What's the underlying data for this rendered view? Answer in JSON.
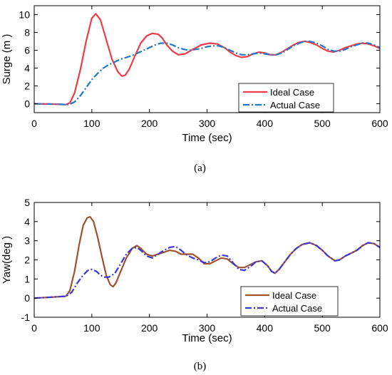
{
  "chart_data": [
    {
      "type": "line",
      "caption": "(a)",
      "xlabel": "Time (sec)",
      "ylabel": "Surge (m",
      "ylabel_suffix": ")",
      "xlim": [
        0,
        600
      ],
      "ylim": [
        -1,
        11
      ],
      "x_ticks": [
        0,
        100,
        200,
        300,
        400,
        500,
        600
      ],
      "y_ticks": [
        0,
        2,
        4,
        6,
        8,
        10
      ],
      "legend_position": "bottom-right",
      "series": [
        {
          "name": "Ideal Case",
          "color": "#f03c46",
          "style": "solid",
          "x": [
            0,
            40,
            55,
            62,
            70,
            80,
            90,
            100,
            107,
            115,
            125,
            135,
            145,
            152,
            158,
            165,
            175,
            185,
            195,
            205,
            215,
            222,
            230,
            240,
            250,
            262,
            275,
            290,
            305,
            318,
            330,
            340,
            350,
            360,
            370,
            380,
            390,
            400,
            410,
            420,
            430,
            440,
            450,
            460,
            470,
            478,
            490,
            500,
            510,
            520,
            530,
            540,
            550,
            560,
            570,
            580,
            590,
            600
          ],
          "y": [
            0,
            -0.05,
            -0.1,
            0.1,
            1.2,
            3.8,
            7.0,
            9.6,
            10.1,
            9.4,
            7.2,
            5.0,
            3.6,
            3.1,
            3.2,
            3.9,
            5.4,
            6.8,
            7.6,
            7.9,
            7.8,
            7.4,
            6.6,
            5.9,
            5.5,
            5.6,
            6.1,
            6.6,
            6.8,
            6.7,
            6.3,
            5.8,
            5.4,
            5.2,
            5.3,
            5.6,
            5.8,
            5.7,
            5.5,
            5.5,
            5.8,
            6.2,
            6.6,
            6.9,
            7.0,
            6.9,
            6.6,
            6.2,
            5.9,
            5.8,
            6.0,
            6.3,
            6.5,
            6.7,
            6.8,
            6.7,
            6.5,
            6.2
          ]
        },
        {
          "name": "Actual Case",
          "color": "#1f78c8",
          "style": "dashdot",
          "x": [
            0,
            40,
            60,
            70,
            80,
            90,
            100,
            110,
            120,
            130,
            140,
            150,
            160,
            170,
            180,
            190,
            200,
            210,
            220,
            230,
            240,
            250,
            260,
            270,
            280,
            290,
            300,
            310,
            320,
            330,
            340,
            350,
            360,
            370,
            380,
            390,
            400,
            410,
            420,
            430,
            440,
            450,
            460,
            470,
            478,
            490,
            500,
            510,
            520,
            530,
            540,
            550,
            560,
            570,
            580,
            590,
            600
          ],
          "y": [
            0,
            -0.05,
            -0.1,
            0.2,
            0.9,
            1.8,
            2.7,
            3.4,
            4.0,
            4.4,
            4.7,
            5.0,
            5.2,
            5.4,
            5.7,
            6.0,
            6.3,
            6.6,
            6.8,
            6.8,
            6.6,
            6.3,
            6.1,
            6.0,
            6.1,
            6.2,
            6.4,
            6.5,
            6.5,
            6.3,
            6.0,
            5.7,
            5.5,
            5.5,
            5.6,
            5.7,
            5.6,
            5.5,
            5.5,
            5.7,
            6.1,
            6.5,
            6.8,
            7.0,
            7.0,
            6.8,
            6.5,
            6.1,
            5.9,
            5.9,
            6.1,
            6.4,
            6.6,
            6.8,
            6.8,
            6.6,
            6.3
          ]
        }
      ]
    },
    {
      "type": "line",
      "caption": "(b)",
      "xlabel": "Time (sec)",
      "ylabel": "Yaw(deg",
      "ylabel_suffix": ")",
      "xlim": [
        0,
        600
      ],
      "ylim": [
        -1,
        5
      ],
      "x_ticks": [
        0,
        100,
        200,
        300,
        400,
        500,
        600
      ],
      "y_ticks": [
        -1,
        0,
        1,
        2,
        3,
        4,
        5
      ],
      "legend_position": "bottom-right",
      "series": [
        {
          "name": "Ideal Case",
          "color": "#a0522d",
          "style": "solid",
          "x": [
            0,
            30,
            55,
            62,
            70,
            78,
            85,
            92,
            97,
            103,
            110,
            118,
            125,
            132,
            137,
            142,
            150,
            160,
            170,
            178,
            185,
            195,
            205,
            215,
            225,
            235,
            245,
            255,
            265,
            275,
            285,
            295,
            305,
            315,
            325,
            335,
            345,
            355,
            365,
            375,
            385,
            395,
            405,
            412,
            418,
            425,
            435,
            445,
            455,
            465,
            478,
            490,
            500,
            510,
            522,
            530,
            540,
            550,
            560,
            570,
            580,
            590,
            600
          ],
          "y": [
            0,
            0.05,
            0.1,
            0.4,
            1.4,
            2.8,
            3.8,
            4.2,
            4.25,
            4.0,
            3.2,
            2.1,
            1.2,
            0.7,
            0.6,
            0.8,
            1.4,
            2.1,
            2.6,
            2.75,
            2.6,
            2.3,
            2.2,
            2.3,
            2.4,
            2.5,
            2.45,
            2.3,
            2.3,
            2.3,
            2.1,
            1.8,
            1.8,
            1.95,
            2.1,
            2.05,
            1.8,
            1.6,
            1.6,
            1.75,
            1.9,
            1.95,
            1.7,
            1.4,
            1.3,
            1.5,
            1.9,
            2.3,
            2.6,
            2.8,
            2.9,
            2.75,
            2.5,
            2.2,
            1.95,
            2.0,
            2.2,
            2.35,
            2.5,
            2.75,
            2.9,
            2.85,
            2.65
          ]
        },
        {
          "name": "Actual Case",
          "color": "#3a36d9",
          "style": "dashdot",
          "x": [
            0,
            30,
            55,
            65,
            75,
            85,
            93,
            100,
            108,
            115,
            122,
            130,
            140,
            150,
            160,
            170,
            178,
            185,
            195,
            205,
            215,
            225,
            235,
            245,
            255,
            265,
            275,
            285,
            295,
            305,
            315,
            325,
            335,
            345,
            355,
            365,
            375,
            385,
            395,
            405,
            412,
            418,
            425,
            435,
            445,
            455,
            465,
            478,
            490,
            500,
            510,
            522,
            530,
            540,
            550,
            560,
            570,
            580,
            590,
            600
          ],
          "y": [
            0,
            0.05,
            0.1,
            0.3,
            0.8,
            1.2,
            1.45,
            1.5,
            1.4,
            1.2,
            1.1,
            1.1,
            1.3,
            1.8,
            2.3,
            2.6,
            2.65,
            2.5,
            2.2,
            2.1,
            2.3,
            2.5,
            2.65,
            2.7,
            2.5,
            2.25,
            2.1,
            2.0,
            1.85,
            1.9,
            2.1,
            2.25,
            2.2,
            1.85,
            1.5,
            1.45,
            1.65,
            1.9,
            1.95,
            1.7,
            1.4,
            1.3,
            1.5,
            1.9,
            2.3,
            2.6,
            2.8,
            2.9,
            2.75,
            2.5,
            2.2,
            1.95,
            2.0,
            2.2,
            2.35,
            2.5,
            2.75,
            2.9,
            2.85,
            2.65
          ]
        }
      ]
    }
  ]
}
